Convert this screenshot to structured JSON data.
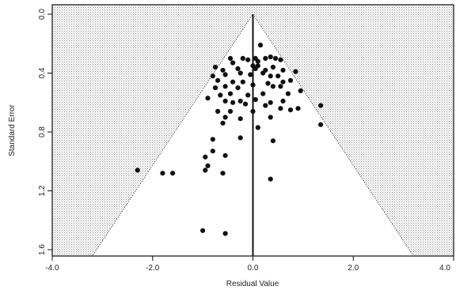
{
  "chart_data": {
    "type": "scatter",
    "title": "",
    "xlabel": "Residual Value",
    "ylabel": "Standard Error",
    "xlim": [
      -4.0,
      4.0
    ],
    "ylim": [
      1.6,
      0.0
    ],
    "y_axis_inverted": true,
    "x_ticks": [
      "-4.0",
      "-2.0",
      "0.0",
      "2.0",
      "4.0"
    ],
    "y_ticks": [
      "0.0",
      "0.4",
      "0.8",
      "1.2",
      "1.6"
    ],
    "x_tick_values": [
      -4.0,
      -2.0,
      0.0,
      2.0,
      4.0
    ],
    "y_tick_values": [
      0.0,
      0.4,
      0.8,
      1.2,
      1.6
    ],
    "funnel": {
      "apex": [
        0.0,
        0.0
      ],
      "base_left": [
        -3.2,
        1.6
      ],
      "base_right": [
        3.2,
        1.6
      ]
    },
    "reference_line_x": 0.0,
    "outside_fill": "stippled-grey",
    "marker_color": "#111111",
    "points": [
      [
        -0.75,
        0.36
      ],
      [
        -0.45,
        0.3
      ],
      [
        -0.4,
        0.33
      ],
      [
        -0.2,
        0.3
      ],
      [
        -0.1,
        0.31
      ],
      [
        0.05,
        0.3
      ],
      [
        0.1,
        0.32
      ],
      [
        0.25,
        0.3
      ],
      [
        0.35,
        0.29
      ],
      [
        0.45,
        0.3
      ],
      [
        0.55,
        0.31
      ],
      [
        0.15,
        0.21
      ],
      [
        0.0,
        0.35
      ],
      [
        0.05,
        0.37
      ],
      [
        0.1,
        0.35
      ],
      [
        -0.6,
        0.38
      ],
      [
        -0.3,
        0.37
      ],
      [
        0.25,
        0.38
      ],
      [
        0.4,
        0.36
      ],
      [
        0.6,
        0.38
      ],
      [
        0.85,
        0.39
      ],
      [
        -0.8,
        0.42
      ],
      [
        -0.55,
        0.41
      ],
      [
        -0.25,
        0.4
      ],
      [
        -0.05,
        0.41
      ],
      [
        0.2,
        0.4
      ],
      [
        0.35,
        0.42
      ],
      [
        0.5,
        0.42
      ],
      [
        -0.7,
        0.45
      ],
      [
        -0.4,
        0.46
      ],
      [
        -0.2,
        0.46
      ],
      [
        0.3,
        0.47
      ],
      [
        0.6,
        0.46
      ],
      [
        0.75,
        0.45
      ],
      [
        -0.75,
        0.5
      ],
      [
        -0.55,
        0.49
      ],
      [
        -0.3,
        0.5
      ],
      [
        0.0,
        0.48
      ],
      [
        0.4,
        0.49
      ],
      [
        0.55,
        0.49
      ],
      [
        0.95,
        0.52
      ],
      [
        -0.65,
        0.55
      ],
      [
        -0.45,
        0.54
      ],
      [
        -0.1,
        0.55
      ],
      [
        0.2,
        0.54
      ],
      [
        0.7,
        0.54
      ],
      [
        -0.9,
        0.57
      ],
      [
        -0.55,
        0.59
      ],
      [
        -0.25,
        0.59
      ],
      [
        0.05,
        0.58
      ],
      [
        0.35,
        0.6
      ],
      [
        0.6,
        0.59
      ],
      [
        -0.4,
        0.6
      ],
      [
        -0.15,
        0.61
      ],
      [
        0.25,
        0.62
      ],
      [
        0.55,
        0.64
      ],
      [
        0.75,
        0.65
      ],
      [
        0.9,
        0.64
      ],
      [
        1.35,
        0.62
      ],
      [
        -0.7,
        0.66
      ],
      [
        -0.45,
        0.66
      ],
      [
        0.0,
        0.66
      ],
      [
        -0.55,
        0.7
      ],
      [
        -0.25,
        0.71
      ],
      [
        0.35,
        0.7
      ],
      [
        -0.6,
        0.74
      ],
      [
        0.1,
        0.77
      ],
      [
        -0.25,
        0.84
      ],
      [
        -0.8,
        0.85
      ],
      [
        0.4,
        0.86
      ],
      [
        1.35,
        0.75
      ],
      [
        -0.8,
        0.93
      ],
      [
        -0.55,
        0.96
      ],
      [
        -0.95,
        0.97
      ],
      [
        -0.9,
        1.03
      ],
      [
        -0.95,
        1.06
      ],
      [
        -0.6,
        1.08
      ],
      [
        -1.6,
        1.08
      ],
      [
        -1.8,
        1.08
      ],
      [
        -2.3,
        1.06
      ],
      [
        0.35,
        1.12
      ],
      [
        -1.0,
        1.47
      ],
      [
        -0.55,
        1.49
      ]
    ]
  }
}
